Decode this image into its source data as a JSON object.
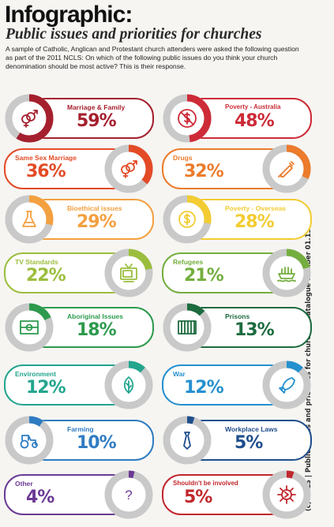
{
  "header": {
    "title": "Infographic:",
    "subtitle": "Public issues and priorities for churches",
    "intro": "A sample of Catholic, Anglican and Protestant church attenders were asked the following question as part of the 2011 NCLS: On which of the following public issues do you think your church denomination should be most active? This is their response.",
    "side_credit": "(c) NCLS  |  Public issues and priorities for churches Catalogue number 01.13004"
  },
  "chart_data": {
    "type": "donut",
    "categories": [
      "Marriage & Family",
      "Poverty - Australia",
      "Same Sex Marriage",
      "Drugs",
      "Bioethical issues",
      "Poverty - Overseas",
      "TV Standards",
      "Refugees",
      "Aboriginal Issues",
      "Prisons",
      "Environment",
      "War",
      "Farming",
      "Workplace Laws",
      "Other",
      "Shouldn't be involved"
    ],
    "values": [
      59,
      48,
      36,
      32,
      29,
      28,
      22,
      21,
      18,
      13,
      12,
      12,
      10,
      5,
      4,
      5
    ],
    "unit": "%"
  },
  "issues": [
    {
      "label": "Marriage & Family",
      "pct": "59%",
      "value": 59,
      "color": "#a5202e",
      "icon": "gender-symbols-icon"
    },
    {
      "label": "Poverty - Australia",
      "pct": "48%",
      "value": 48,
      "color": "#cd2b37",
      "icon": "no-dollar-icon"
    },
    {
      "label": "Same Sex Marriage",
      "pct": "36%",
      "value": 36,
      "color": "#e34b27",
      "icon": "gender-symbols-icon"
    },
    {
      "label": "Drugs",
      "pct": "32%",
      "value": 32,
      "color": "#ec7b2b",
      "icon": "syringe-icon"
    },
    {
      "label": "Bioethical issues",
      "pct": "29%",
      "value": 29,
      "color": "#f3a040",
      "icon": "flask-icon"
    },
    {
      "label": "Poverty - Overseas",
      "pct": "28%",
      "value": 28,
      "color": "#f2cc32",
      "icon": "dollar-coin-icon"
    },
    {
      "label": "TV Standards",
      "pct": "22%",
      "value": 22,
      "color": "#9cbe3e",
      "icon": "tv-icon"
    },
    {
      "label": "Refugees",
      "pct": "21%",
      "value": 21,
      "color": "#74ae3e",
      "icon": "boat-icon"
    },
    {
      "label": "Aboriginal Issues",
      "pct": "18%",
      "value": 18,
      "color": "#2d9a4d",
      "icon": "aboriginal-flag-icon"
    },
    {
      "label": "Prisons",
      "pct": "13%",
      "value": 13,
      "color": "#1d6b3f",
      "icon": "prison-bars-icon"
    },
    {
      "label": "Environment",
      "pct": "12%",
      "value": 12,
      "color": "#23a58e",
      "icon": "leaf-icon"
    },
    {
      "label": "War",
      "pct": "12%",
      "value": 12,
      "color": "#2590cf",
      "icon": "rocket-icon"
    },
    {
      "label": "Farming",
      "pct": "10%",
      "value": 10,
      "color": "#2f7cc2",
      "icon": "tractor-icon"
    },
    {
      "label": "Workplace Laws",
      "pct": "5%",
      "value": 5,
      "color": "#1f4e8c",
      "icon": "tie-icon"
    },
    {
      "label": "Other",
      "pct": "4%",
      "value": 4,
      "color": "#6b3a94",
      "icon": "question-icon"
    },
    {
      "label": "Shouldn't be involved",
      "pct": "5%",
      "value": 5,
      "color": "#c1272d",
      "icon": "cog-icon"
    }
  ]
}
